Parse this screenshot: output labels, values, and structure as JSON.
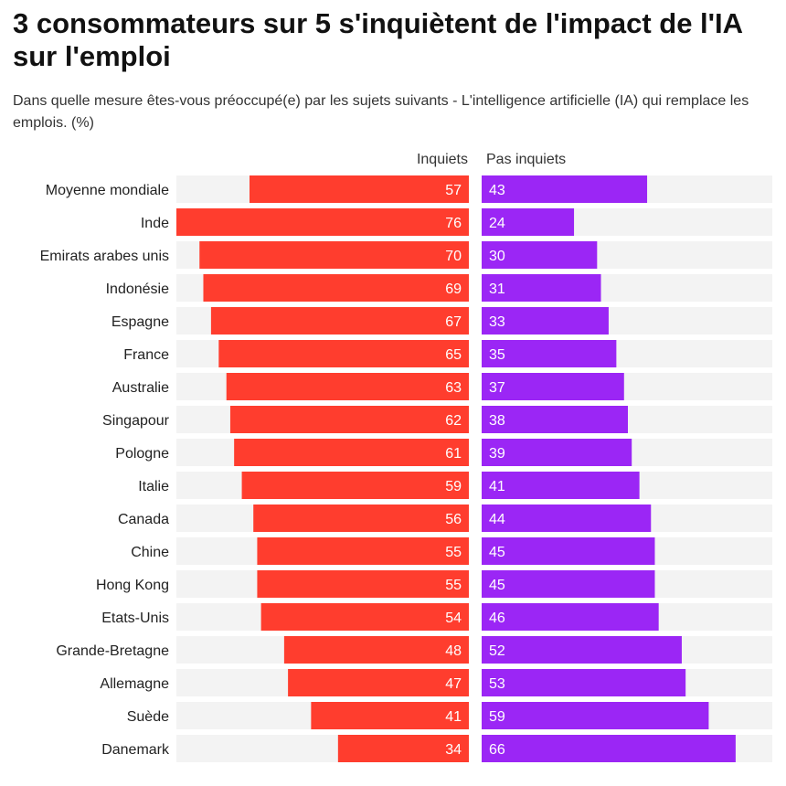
{
  "title": "3 consommateurs sur 5 s'inquiètent de l'impact de l'IA sur l'emploi",
  "subtitle": "Dans quelle mesure êtes-vous préoccupé(e) par les sujets suivants - L'intelligence artificielle (IA) qui remplace les emplois. (%)",
  "chart_data": {
    "type": "bar",
    "orientation": "horizontal-diverging",
    "grid": false,
    "legend": "column-headers-top",
    "categories": [
      "Moyenne mondiale",
      "Inde",
      "Emirats arabes unis",
      "Indonésie",
      "Espagne",
      "France",
      "Australie",
      "Singapour",
      "Pologne",
      "Italie",
      "Canada",
      "Chine",
      "Hong Kong",
      "Etats-Unis",
      "Grande-Bretagne",
      "Allemagne",
      "Suède",
      "Danemark"
    ],
    "series": [
      {
        "name": "Inquiets",
        "color": "#ff3d2e",
        "values": [
          57,
          76,
          70,
          69,
          67,
          65,
          63,
          62,
          61,
          59,
          56,
          55,
          55,
          54,
          48,
          47,
          41,
          34
        ]
      },
      {
        "name": "Pas inquiets",
        "color": "#9b26f5",
        "values": [
          43,
          24,
          30,
          31,
          33,
          35,
          37,
          38,
          39,
          41,
          44,
          45,
          45,
          46,
          52,
          53,
          59,
          66
        ]
      }
    ],
    "xlim": [
      0,
      76
    ],
    "background_color": "#f3f3f3"
  }
}
